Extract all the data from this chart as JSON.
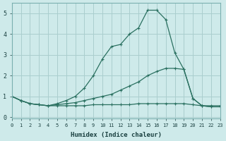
{
  "xlabel": "Humidex (Indice chaleur)",
  "bg_color": "#ceeaea",
  "grid_color": "#aacece",
  "line_color": "#2a7060",
  "xmin": 0,
  "xmax": 23,
  "ymin": -0.05,
  "ymax": 5.5,
  "yticks": [
    0,
    1,
    2,
    3,
    4,
    5
  ],
  "xticks": [
    0,
    1,
    2,
    3,
    4,
    5,
    6,
    7,
    8,
    9,
    10,
    11,
    12,
    13,
    14,
    15,
    16,
    17,
    18,
    19,
    20,
    21,
    22,
    23
  ],
  "series": [
    [
      1.0,
      0.8,
      0.65,
      0.6,
      0.55,
      0.55,
      0.55,
      0.55,
      0.55,
      0.6,
      0.6,
      0.6,
      0.6,
      0.6,
      0.65,
      0.65,
      0.65,
      0.65,
      0.65,
      0.65,
      0.6,
      0.55,
      0.55,
      0.55
    ],
    [
      1.0,
      0.8,
      0.65,
      0.6,
      0.55,
      0.6,
      0.65,
      0.7,
      0.8,
      0.9,
      1.0,
      1.1,
      1.3,
      1.5,
      1.7,
      2.0,
      2.2,
      2.35,
      2.35,
      2.3,
      0.9,
      0.55,
      0.5,
      0.5
    ],
    [
      1.0,
      0.8,
      0.65,
      0.6,
      0.55,
      0.65,
      0.8,
      1.0,
      1.4,
      2.0,
      2.8,
      3.4,
      3.5,
      4.0,
      4.3,
      5.15,
      5.15,
      4.7,
      3.1,
      2.3,
      0.9,
      0.55,
      0.5,
      0.5
    ]
  ]
}
